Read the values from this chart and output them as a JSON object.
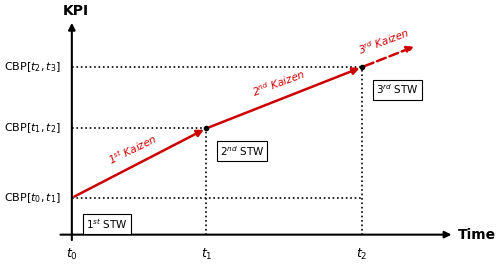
{
  "bg_color": "#ffffff",
  "axis_color": "#000000",
  "red_color": "#cc0000",
  "t0": 0.0,
  "t1": 0.38,
  "t2": 0.82,
  "t3": 1.05,
  "cbp0": 0.18,
  "cbp1": 0.52,
  "cbp2": 0.82,
  "xmin": -0.05,
  "xmax": 1.08,
  "ymin": -0.05,
  "ymax": 1.05,
  "xlabel": "Time",
  "ylabel": "KPI",
  "t0_label": "$t_0$",
  "t1_label": "$t_1$",
  "t2_label": "$t_2$",
  "cbp0_label": "CBP$[t_0, t_1]$",
  "cbp1_label": "CBP$[t_1, t_2]$",
  "cbp2_label": "CBP$[t_2, t_3]$",
  "label_1st_stw": "1$^{st}$ STW",
  "label_2nd_stw": "2$^{nd}$ STW",
  "label_3rd_stw": "3$^{rd}$ STW",
  "label_1st_kaizen": "1$^{st}$ Kaizen",
  "label_2nd_kaizen": "2$^{nd}$ Kaizen",
  "label_3rd_kaizen": "3$^{rd}$ Kaizen"
}
